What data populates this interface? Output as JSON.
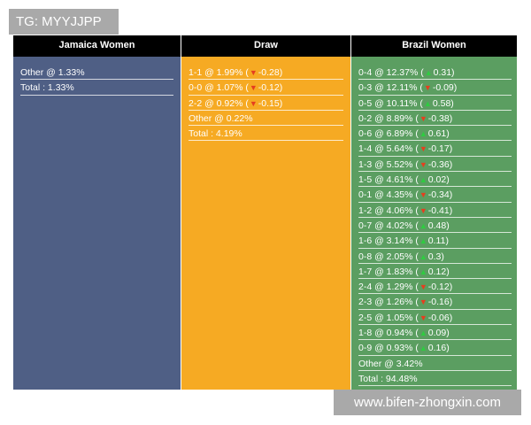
{
  "watermarks": {
    "top_left": "TG: MYYJJPP",
    "bottom_right": "www.bifen-zhongxin.com"
  },
  "colors": {
    "jamaica": "#4f5f85",
    "draw": "#f6aa23",
    "brazil": "#5b9e61",
    "header": "#000000",
    "up": "#2ecc40",
    "down": "#e53e1f"
  },
  "columns": [
    {
      "title": "Jamaica Women",
      "rows": [
        {
          "text": "Other @ 1.33%",
          "trend": null,
          "change": null
        },
        {
          "text": "Total : 1.33%",
          "trend": null,
          "change": null
        }
      ]
    },
    {
      "title": "Draw",
      "rows": [
        {
          "text": "1-1 @ 1.99% (",
          "trend": "down",
          "change": "-0.28)"
        },
        {
          "text": "0-0 @ 1.07% (",
          "trend": "down",
          "change": "-0.12)"
        },
        {
          "text": "2-2 @ 0.92% (",
          "trend": "down",
          "change": "-0.15)"
        },
        {
          "text": "Other @ 0.22%",
          "trend": null,
          "change": null
        },
        {
          "text": "Total : 4.19%",
          "trend": null,
          "change": null
        }
      ]
    },
    {
      "title": "Brazil Women",
      "rows": [
        {
          "text": "0-4 @ 12.37% (",
          "trend": "up",
          "change": "0.31)"
        },
        {
          "text": "0-3 @ 12.11% (",
          "trend": "down",
          "change": "-0.09)"
        },
        {
          "text": "0-5 @ 10.11% (",
          "trend": "up",
          "change": "0.58)"
        },
        {
          "text": "0-2 @ 8.89% (",
          "trend": "down",
          "change": "-0.38)"
        },
        {
          "text": "0-6 @ 6.89% (",
          "trend": "up",
          "change": "0.61)"
        },
        {
          "text": "1-4 @ 5.64% (",
          "trend": "down",
          "change": "-0.17)"
        },
        {
          "text": "1-3 @ 5.52% (",
          "trend": "down",
          "change": "-0.36)"
        },
        {
          "text": "1-5 @ 4.61% (",
          "trend": "up",
          "change": "0.02)"
        },
        {
          "text": "0-1 @ 4.35% (",
          "trend": "down",
          "change": "-0.34)"
        },
        {
          "text": "1-2 @ 4.06% (",
          "trend": "down",
          "change": "-0.41)"
        },
        {
          "text": "0-7 @ 4.02% (",
          "trend": "up",
          "change": "0.48)"
        },
        {
          "text": "1-6 @ 3.14% (",
          "trend": "up",
          "change": "0.11)"
        },
        {
          "text": "0-8 @ 2.05% (",
          "trend": "up",
          "change": "0.3)"
        },
        {
          "text": "1-7 @ 1.83% (",
          "trend": "up",
          "change": "0.12)"
        },
        {
          "text": "2-4 @ 1.29% (",
          "trend": "down",
          "change": "-0.12)"
        },
        {
          "text": "2-3 @ 1.26% (",
          "trend": "down",
          "change": "-0.16)"
        },
        {
          "text": "2-5 @ 1.05% (",
          "trend": "down",
          "change": "-0.06)"
        },
        {
          "text": "1-8 @ 0.94% (",
          "trend": "up",
          "change": "0.09)"
        },
        {
          "text": "0-9 @ 0.93% (",
          "trend": "up",
          "change": "0.16)"
        },
        {
          "text": "Other @ 3.42%",
          "trend": null,
          "change": null
        },
        {
          "text": "Total : 94.48%",
          "trend": null,
          "change": null
        }
      ]
    }
  ],
  "icons": {
    "up": "▲",
    "down": "▼"
  }
}
